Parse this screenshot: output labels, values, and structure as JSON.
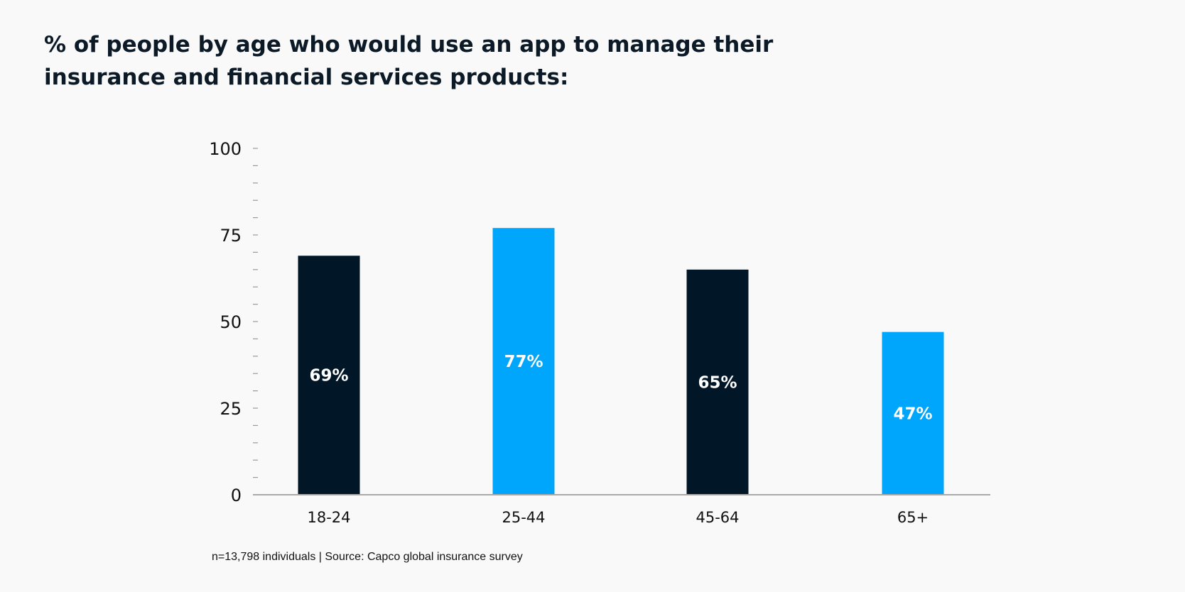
{
  "chart_data": {
    "type": "bar",
    "title": "% of people by age who would use an app to manage their insurance and financial services products:",
    "categories": [
      "18-24",
      "25-44",
      "45-64",
      "65+"
    ],
    "values": [
      69,
      77,
      65,
      47
    ],
    "data_labels": [
      "69%",
      "77%",
      "65%",
      "47%"
    ],
    "bar_colors": [
      "#011627",
      "#00a6fb",
      "#011627",
      "#00a6fb"
    ],
    "ylim": [
      0,
      100
    ],
    "yticks": [
      0,
      25,
      50,
      75,
      100
    ],
    "minor_tick_step": 5,
    "grid": false,
    "xlabel": "",
    "ylabel": ""
  },
  "footer": "n=13,798 individuals  |  Source: Capco global insurance survey"
}
